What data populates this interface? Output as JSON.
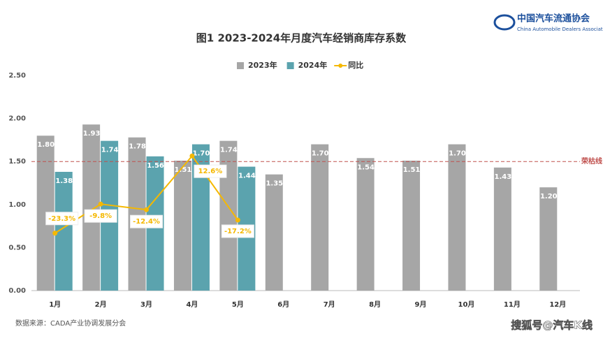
{
  "chart_data": {
    "type": "bar",
    "title": "图1  2023-2024年月度汽车经销商库存系数",
    "categories": [
      "1月",
      "2月",
      "3月",
      "4月",
      "5月",
      "6月",
      "7月",
      "8月",
      "9月",
      "10月",
      "11月",
      "12月"
    ],
    "series": [
      {
        "name": "2023年",
        "type": "bar",
        "color": "#a6a6a6",
        "values": [
          1.8,
          1.93,
          1.78,
          1.51,
          1.74,
          1.35,
          1.7,
          1.54,
          1.51,
          1.7,
          1.43,
          1.2
        ],
        "value_labels": [
          "1.80",
          "1.93",
          "1.78",
          "1.51",
          "1.74",
          "1.35",
          "1.70",
          "1.54",
          "1.51",
          "1.70",
          "1.43",
          "1.20"
        ]
      },
      {
        "name": "2024年",
        "type": "bar",
        "color": "#5ba3ae",
        "values": [
          1.38,
          1.74,
          1.56,
          1.7,
          1.44,
          null,
          null,
          null,
          null,
          null,
          null,
          null
        ],
        "value_labels": [
          "1.38",
          "1.74",
          "1.56",
          "1.70",
          "1.44",
          null,
          null,
          null,
          null,
          null,
          null,
          null
        ]
      },
      {
        "name": "同比",
        "type": "line",
        "axis": "y2",
        "color": "#f5b800",
        "values": [
          -23.3,
          -9.8,
          -12.4,
          12.6,
          -17.2,
          null,
          null,
          null,
          null,
          null,
          null,
          null
        ],
        "value_labels": [
          "-23.3%",
          "-9.8%",
          "-12.4%",
          "12.6%",
          "-17.2%",
          null,
          null,
          null,
          null,
          null,
          null,
          null
        ]
      }
    ],
    "ylim": [
      0,
      2.5
    ],
    "yticks": [
      {
        "value": 0,
        "label": "0.00"
      },
      {
        "value": 0.5,
        "label": "0.50"
      },
      {
        "value": 1,
        "label": "1.00"
      },
      {
        "value": 1.5,
        "label": "1.50"
      },
      {
        "value": 2,
        "label": "2.00"
      },
      {
        "value": 2.5,
        "label": "2.50"
      }
    ],
    "y2lim": [
      -50,
      50
    ],
    "ref_line": {
      "value": 1.5,
      "label": "荣枯线",
      "color": "#c0504d"
    },
    "source": "数据来源：CADA产业协调发展分会",
    "logo": {
      "name": "中国汽车流通协会",
      "english": "China Automobile Dealers Association"
    },
    "watermark": "搜狐号@汽车K线"
  }
}
